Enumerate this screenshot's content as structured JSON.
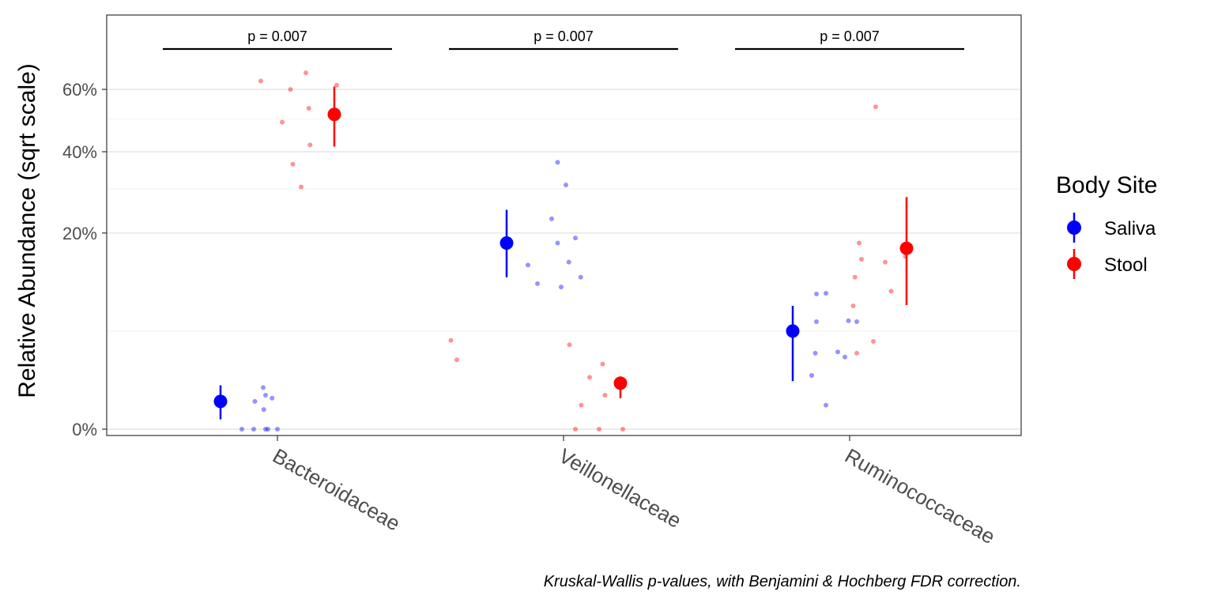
{
  "chart_data": {
    "type": "scatter",
    "ylabel": "Relative Abundance (sqrt scale)",
    "y_scale": "sqrt",
    "ylim": [
      0,
      0.75
    ],
    "y_ticks": [
      {
        "value": 0.0,
        "label": "0%"
      },
      {
        "value": 0.2,
        "label": "20%"
      },
      {
        "value": 0.4,
        "label": "40%"
      },
      {
        "value": 0.6,
        "label": "60%"
      }
    ],
    "y_minor_ticks": [
      0.05,
      0.3,
      0.5
    ],
    "categories": [
      "Bacteroidaceae",
      "Veillonellaceae",
      "Ruminococcaceae"
    ],
    "legend": {
      "title": "Body Site",
      "placement": "right",
      "items": [
        {
          "name": "Saliva",
          "color": "#0000ff"
        },
        {
          "name": "Stool",
          "color": "#ff0000"
        }
      ]
    },
    "series": [
      {
        "name": "Saliva",
        "color": "#0000ff",
        "summary": [
          {
            "category": "Bacteroidaceae",
            "median": 0.004,
            "low": 0.0005,
            "high": 0.01
          },
          {
            "category": "Veillonellaceae",
            "median": 0.18,
            "low": 0.12,
            "high": 0.25
          },
          {
            "category": "Ruminococcaceae",
            "median": 0.05,
            "low": 0.012,
            "high": 0.079
          }
        ],
        "points": [
          {
            "category": "Bacteroidaceae",
            "jitter": -0.3,
            "value": 0.0
          },
          {
            "category": "Bacteroidaceae",
            "jitter": -0.2,
            "value": 0.0
          },
          {
            "category": "Bacteroidaceae",
            "jitter": -0.19,
            "value": 0.004
          },
          {
            "category": "Bacteroidaceae",
            "jitter": -0.12,
            "value": 0.009
          },
          {
            "category": "Bacteroidaceae",
            "jitter": -0.115,
            "value": 0.002
          },
          {
            "category": "Bacteroidaceae",
            "jitter": -0.08,
            "value": 0.0
          },
          {
            "category": "Bacteroidaceae",
            "jitter": -0.1,
            "value": 0.006
          },
          {
            "category": "Bacteroidaceae",
            "jitter": -0.045,
            "value": 0.005
          },
          {
            "category": "Bacteroidaceae",
            "jitter": 0.0,
            "value": 0.0
          },
          {
            "category": "Bacteroidaceae",
            "jitter": -0.1,
            "value": 0.0
          },
          {
            "category": "Veillonellaceae",
            "jitter": -0.3,
            "value": 0.14
          },
          {
            "category": "Veillonellaceae",
            "jitter": -0.22,
            "value": 0.11
          },
          {
            "category": "Veillonellaceae",
            "jitter": -0.1,
            "value": 0.23
          },
          {
            "category": "Veillonellaceae",
            "jitter": -0.05,
            "value": 0.18
          },
          {
            "category": "Veillonellaceae",
            "jitter": -0.05,
            "value": 0.37
          },
          {
            "category": "Veillonellaceae",
            "jitter": -0.02,
            "value": 0.105
          },
          {
            "category": "Veillonellaceae",
            "jitter": 0.02,
            "value": 0.31
          },
          {
            "category": "Veillonellaceae",
            "jitter": 0.045,
            "value": 0.145
          },
          {
            "category": "Veillonellaceae",
            "jitter": 0.1,
            "value": 0.19
          },
          {
            "category": "Veillonellaceae",
            "jitter": 0.145,
            "value": 0.12
          },
          {
            "category": "Ruminococcaceae",
            "jitter": -0.32,
            "value": 0.015
          },
          {
            "category": "Ruminococcaceae",
            "jitter": -0.29,
            "value": 0.03
          },
          {
            "category": "Ruminococcaceae",
            "jitter": -0.28,
            "value": 0.06
          },
          {
            "category": "Ruminococcaceae",
            "jitter": -0.28,
            "value": 0.095
          },
          {
            "category": "Ruminococcaceae",
            "jitter": -0.2,
            "value": 0.003
          },
          {
            "category": "Ruminococcaceae",
            "jitter": -0.2,
            "value": 0.096
          },
          {
            "category": "Ruminococcaceae",
            "jitter": -0.1,
            "value": 0.031
          },
          {
            "category": "Ruminococcaceae",
            "jitter": -0.04,
            "value": 0.027
          },
          {
            "category": "Ruminococcaceae",
            "jitter": -0.01,
            "value": 0.061
          },
          {
            "category": "Ruminococcaceae",
            "jitter": 0.06,
            "value": 0.06
          }
        ]
      },
      {
        "name": "Stool",
        "color": "#ff0000",
        "summary": [
          {
            "category": "Bacteroidaceae",
            "median": 0.515,
            "low": 0.415,
            "high": 0.61
          },
          {
            "category": "Veillonellaceae",
            "median": 0.011,
            "low": 0.005,
            "high": 0.013
          },
          {
            "category": "Ruminococcaceae",
            "median": 0.17,
            "low": 0.08,
            "high": 0.28
          }
        ],
        "points": [
          {
            "category": "Bacteroidaceae",
            "jitter": -0.14,
            "value": 0.63
          },
          {
            "category": "Bacteroidaceae",
            "jitter": 0.04,
            "value": 0.49
          },
          {
            "category": "Bacteroidaceae",
            "jitter": 0.11,
            "value": 0.6
          },
          {
            "category": "Bacteroidaceae",
            "jitter": 0.13,
            "value": 0.365
          },
          {
            "category": "Bacteroidaceae",
            "jitter": 0.2,
            "value": 0.305
          },
          {
            "category": "Bacteroidaceae",
            "jitter": 0.24,
            "value": 0.66
          },
          {
            "category": "Bacteroidaceae",
            "jitter": 0.265,
            "value": 0.535
          },
          {
            "category": "Bacteroidaceae",
            "jitter": 0.275,
            "value": 0.42
          },
          {
            "category": "Bacteroidaceae",
            "jitter": 0.5,
            "value": 0.615
          },
          {
            "category": "Veillonellaceae",
            "jitter": -0.95,
            "value": 0.041
          },
          {
            "category": "Veillonellaceae",
            "jitter": -0.9,
            "value": 0.025
          },
          {
            "category": "Veillonellaceae",
            "jitter": 0.05,
            "value": 0.037
          },
          {
            "category": "Veillonellaceae",
            "jitter": 0.1,
            "value": 0.0
          },
          {
            "category": "Veillonellaceae",
            "jitter": 0.15,
            "value": 0.003
          },
          {
            "category": "Veillonellaceae",
            "jitter": 0.22,
            "value": 0.014
          },
          {
            "category": "Veillonellaceae",
            "jitter": 0.3,
            "value": 0.0
          },
          {
            "category": "Veillonellaceae",
            "jitter": 0.33,
            "value": 0.022
          },
          {
            "category": "Veillonellaceae",
            "jitter": 0.35,
            "value": 0.006
          },
          {
            "category": "Veillonellaceae",
            "jitter": 0.5,
            "value": 0.0
          },
          {
            "category": "Ruminococcaceae",
            "jitter": 0.03,
            "value": 0.079
          },
          {
            "category": "Ruminococcaceae",
            "jitter": 0.045,
            "value": 0.12
          },
          {
            "category": "Ruminococcaceae",
            "jitter": 0.06,
            "value": 0.03
          },
          {
            "category": "Ruminococcaceae",
            "jitter": 0.08,
            "value": 0.18
          },
          {
            "category": "Ruminococcaceae",
            "jitter": 0.1,
            "value": 0.15
          },
          {
            "category": "Ruminococcaceae",
            "jitter": 0.2,
            "value": 0.04
          },
          {
            "category": "Ruminococcaceae",
            "jitter": 0.22,
            "value": 0.54
          },
          {
            "category": "Ruminococcaceae",
            "jitter": 0.3,
            "value": 0.145
          },
          {
            "category": "Ruminococcaceae",
            "jitter": 0.35,
            "value": 0.099
          },
          {
            "category": "Ruminococcaceae",
            "jitter": 0.47,
            "value": 0.155
          }
        ]
      }
    ],
    "annotations": [
      {
        "category": "Bacteroidaceae",
        "text": "p = 0.007"
      },
      {
        "category": "Veillonellaceae",
        "text": "p = 0.007"
      },
      {
        "category": "Ruminococcaceae",
        "text": "p = 0.007"
      }
    ],
    "caption": "Kruskal-Wallis p-values, with Benjamini & Hochberg FDR correction."
  }
}
